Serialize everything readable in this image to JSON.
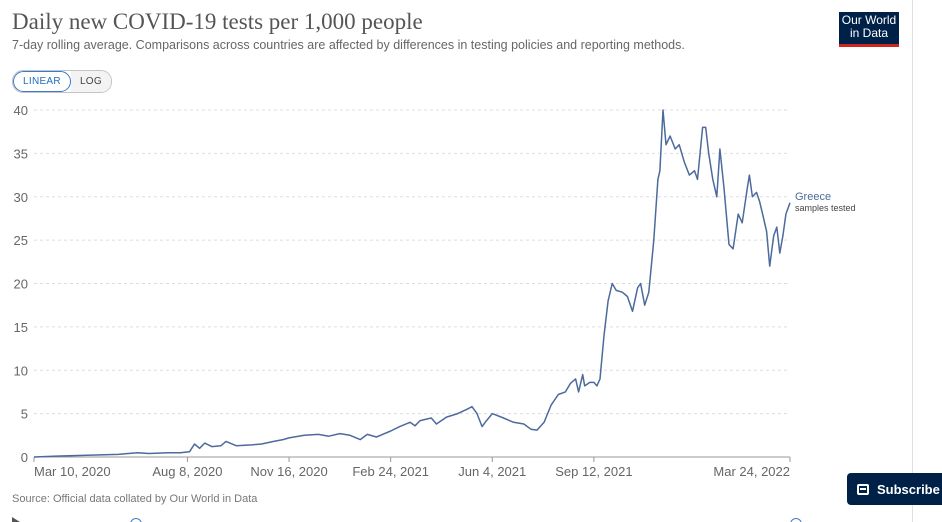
{
  "header": {
    "title": "Daily new COVID-19 tests per 1,000 people",
    "subtitle": "7-day rolling average. Comparisons across countries are affected by differences in testing policies and reporting methods."
  },
  "logo": {
    "line1": "Our World",
    "line2": "in Data"
  },
  "scale_toggle": {
    "linear": "LINEAR",
    "log": "LOG",
    "selected": "LINEAR"
  },
  "footer": {
    "source": "Source: Official data collated by Our World in Data"
  },
  "subscribe": {
    "label": "Subscribe"
  },
  "colors": {
    "series": "#4c6a9c",
    "accent": "#3b7ac8",
    "brand": "#002147",
    "brand_red": "#ce261e"
  },
  "chart_data": {
    "type": "line",
    "title": "Daily new COVID-19 tests per 1,000 people",
    "xlim": [
      "2020-03-10",
      "2022-03-24"
    ],
    "ylim": [
      0,
      40
    ],
    "y_ticks": [
      0,
      5,
      10,
      15,
      20,
      25,
      30,
      35,
      40
    ],
    "x_ticks": [
      "Mar 10, 2020",
      "Aug 8, 2020",
      "Nov 16, 2020",
      "Feb 24, 2021",
      "Jun 4, 2021",
      "Sep 12, 2021",
      "Mar 24, 2022"
    ],
    "grid": "horizontal dashed",
    "series": [
      {
        "name": "Greece",
        "sublabel": "samples tested",
        "points": [
          [
            "2020-03-10",
            0.0
          ],
          [
            "2020-04-01",
            0.1
          ],
          [
            "2020-05-01",
            0.2
          ],
          [
            "2020-06-01",
            0.3
          ],
          [
            "2020-06-20",
            0.5
          ],
          [
            "2020-07-01",
            0.4
          ],
          [
            "2020-07-20",
            0.5
          ],
          [
            "2020-08-01",
            0.5
          ],
          [
            "2020-08-10",
            0.6
          ],
          [
            "2020-08-15",
            1.5
          ],
          [
            "2020-08-20",
            1.0
          ],
          [
            "2020-08-25",
            1.6
          ],
          [
            "2020-09-01",
            1.2
          ],
          [
            "2020-09-10",
            1.3
          ],
          [
            "2020-09-15",
            1.8
          ],
          [
            "2020-09-25",
            1.3
          ],
          [
            "2020-10-10",
            1.4
          ],
          [
            "2020-10-20",
            1.5
          ],
          [
            "2020-11-01",
            1.8
          ],
          [
            "2020-11-10",
            2.0
          ],
          [
            "2020-11-16",
            2.2
          ],
          [
            "2020-12-01",
            2.5
          ],
          [
            "2020-12-15",
            2.6
          ],
          [
            "2020-12-25",
            2.4
          ],
          [
            "2021-01-05",
            2.7
          ],
          [
            "2021-01-15",
            2.5
          ],
          [
            "2021-01-25",
            2.0
          ],
          [
            "2021-02-01",
            2.6
          ],
          [
            "2021-02-10",
            2.3
          ],
          [
            "2021-02-24",
            3.0
          ],
          [
            "2021-03-05",
            3.5
          ],
          [
            "2021-03-15",
            4.0
          ],
          [
            "2021-03-20",
            3.6
          ],
          [
            "2021-03-25",
            4.2
          ],
          [
            "2021-04-05",
            4.5
          ],
          [
            "2021-04-10",
            3.8
          ],
          [
            "2021-04-20",
            4.6
          ],
          [
            "2021-05-01",
            5.0
          ],
          [
            "2021-05-10",
            5.5
          ],
          [
            "2021-05-15",
            5.8
          ],
          [
            "2021-05-20",
            5.0
          ],
          [
            "2021-05-25",
            3.5
          ],
          [
            "2021-05-28",
            4.0
          ],
          [
            "2021-06-04",
            5.0
          ],
          [
            "2021-06-15",
            4.5
          ],
          [
            "2021-06-25",
            4.0
          ],
          [
            "2021-07-05",
            3.8
          ],
          [
            "2021-07-12",
            3.2
          ],
          [
            "2021-07-18",
            3.1
          ],
          [
            "2021-07-25",
            4.0
          ],
          [
            "2021-08-01",
            6.0
          ],
          [
            "2021-08-08",
            7.2
          ],
          [
            "2021-08-15",
            7.5
          ],
          [
            "2021-08-20",
            8.5
          ],
          [
            "2021-08-25",
            9.0
          ],
          [
            "2021-08-28",
            7.5
          ],
          [
            "2021-09-01",
            9.5
          ],
          [
            "2021-09-03",
            8.2
          ],
          [
            "2021-09-08",
            8.6
          ],
          [
            "2021-09-12",
            8.6
          ],
          [
            "2021-09-15",
            8.2
          ],
          [
            "2021-09-18",
            9.0
          ],
          [
            "2021-09-22",
            14.0
          ],
          [
            "2021-09-26",
            18.0
          ],
          [
            "2021-09-30",
            20.0
          ],
          [
            "2021-10-04",
            19.2
          ],
          [
            "2021-10-10",
            19.0
          ],
          [
            "2021-10-15",
            18.5
          ],
          [
            "2021-10-20",
            16.8
          ],
          [
            "2021-10-25",
            19.5
          ],
          [
            "2021-10-28",
            20.0
          ],
          [
            "2021-11-01",
            17.5
          ],
          [
            "2021-11-05",
            19.0
          ],
          [
            "2021-11-10",
            25.0
          ],
          [
            "2021-11-14",
            32.0
          ],
          [
            "2021-11-16",
            33.0
          ],
          [
            "2021-11-19",
            40.0
          ],
          [
            "2021-11-22",
            36.0
          ],
          [
            "2021-11-26",
            37.0
          ],
          [
            "2021-12-01",
            35.5
          ],
          [
            "2021-12-05",
            36.0
          ],
          [
            "2021-12-10",
            34.0
          ],
          [
            "2021-12-15",
            32.5
          ],
          [
            "2021-12-20",
            33.0
          ],
          [
            "2021-12-23",
            32.0
          ],
          [
            "2021-12-28",
            38.0
          ],
          [
            "2021-12-31",
            38.0
          ],
          [
            "2022-01-03",
            35.0
          ],
          [
            "2022-01-07",
            32.0
          ],
          [
            "2022-01-11",
            30.0
          ],
          [
            "2022-01-14",
            35.5
          ],
          [
            "2022-01-18",
            31.0
          ],
          [
            "2022-01-23",
            24.5
          ],
          [
            "2022-01-27",
            24.0
          ],
          [
            "2022-02-01",
            28.0
          ],
          [
            "2022-02-05",
            27.0
          ],
          [
            "2022-02-10",
            31.0
          ],
          [
            "2022-02-12",
            32.5
          ],
          [
            "2022-02-15",
            30.0
          ],
          [
            "2022-02-19",
            30.5
          ],
          [
            "2022-02-22",
            29.5
          ],
          [
            "2022-02-25",
            28.0
          ],
          [
            "2022-03-01",
            26.0
          ],
          [
            "2022-03-04",
            22.0
          ],
          [
            "2022-03-08",
            25.5
          ],
          [
            "2022-03-11",
            26.5
          ],
          [
            "2022-03-14",
            23.5
          ],
          [
            "2022-03-17",
            25.5
          ],
          [
            "2022-03-20",
            28.0
          ],
          [
            "2022-03-24",
            29.3
          ]
        ]
      }
    ]
  }
}
